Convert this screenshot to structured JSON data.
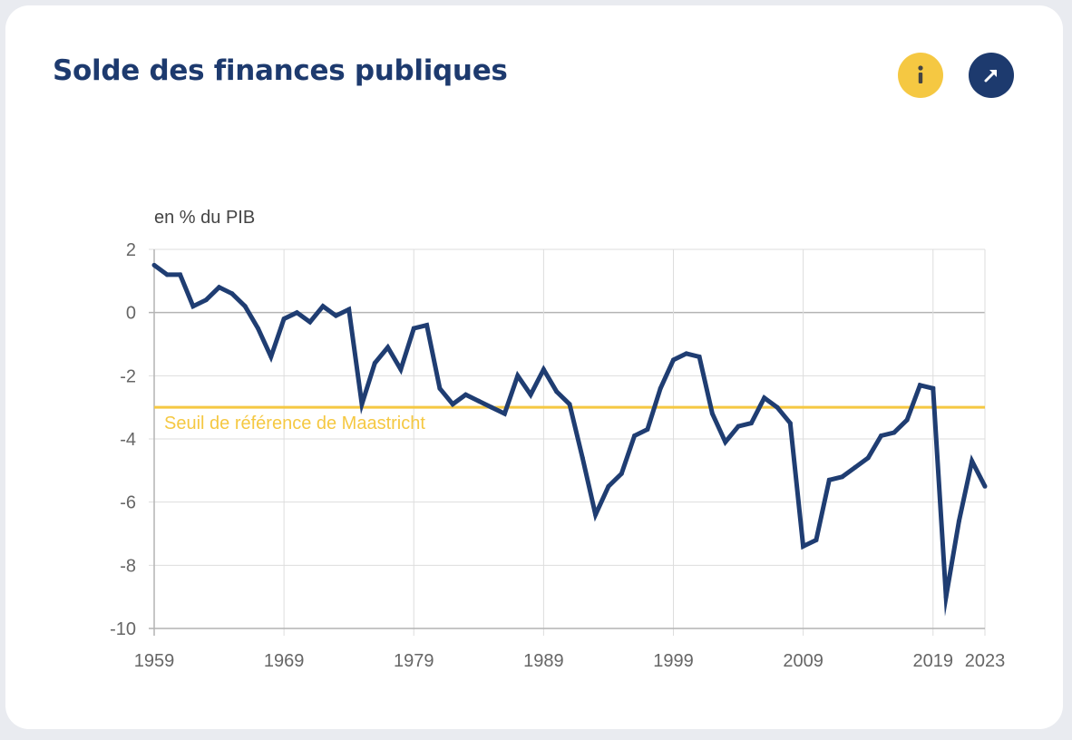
{
  "card": {
    "title": "Solde des finances publiques"
  },
  "icons": {
    "info": "info-icon",
    "open": "arrow-up-right-icon"
  },
  "colors": {
    "title": "#1d3a6e",
    "series": "#1f3d72",
    "threshold": "#f5c842",
    "info_button": "#f5c842",
    "open_button": "#1d3a6e",
    "grid": "#dddddd",
    "axis": "#b4b4b4",
    "tick_text": "#666666"
  },
  "chart_data": {
    "type": "line",
    "unit_label": "en % du PIB",
    "x": [
      1959,
      1960,
      1961,
      1962,
      1963,
      1964,
      1965,
      1966,
      1967,
      1968,
      1969,
      1970,
      1971,
      1972,
      1973,
      1974,
      1975,
      1976,
      1977,
      1978,
      1979,
      1980,
      1981,
      1982,
      1983,
      1984,
      1985,
      1986,
      1987,
      1988,
      1989,
      1990,
      1991,
      1992,
      1993,
      1994,
      1995,
      1996,
      1997,
      1998,
      1999,
      2000,
      2001,
      2002,
      2003,
      2004,
      2005,
      2006,
      2007,
      2008,
      2009,
      2010,
      2011,
      2012,
      2013,
      2014,
      2015,
      2016,
      2017,
      2018,
      2019,
      2020,
      2021,
      2022,
      2023
    ],
    "series": [
      {
        "values": [
          1.5,
          1.2,
          1.2,
          0.2,
          0.4,
          0.8,
          0.6,
          0.2,
          -0.5,
          -1.4,
          -0.2,
          0.0,
          -0.3,
          0.2,
          -0.1,
          0.1,
          -2.9,
          -1.6,
          -1.1,
          -1.8,
          -0.5,
          -0.4,
          -2.4,
          -2.9,
          -2.6,
          -2.8,
          -3.0,
          -3.2,
          -2.0,
          -2.6,
          -1.8,
          -2.5,
          -2.9,
          -4.6,
          -6.4,
          -5.5,
          -5.1,
          -3.9,
          -3.7,
          -2.4,
          -1.5,
          -1.3,
          -1.4,
          -3.2,
          -4.1,
          -3.6,
          -3.5,
          -2.7,
          -3.0,
          -3.5,
          -7.4,
          -7.2,
          -5.3,
          -5.2,
          -4.9,
          -4.6,
          -3.9,
          -3.8,
          -3.4,
          -2.3,
          -2.4,
          -9.0,
          -6.6,
          -4.7,
          -5.5
        ]
      }
    ],
    "threshold": {
      "value": -3,
      "label": "Seuil de référence de Maastricht"
    },
    "x_ticks": [
      1959,
      1969,
      1979,
      1989,
      1999,
      2009,
      2019,
      2023
    ],
    "xlim": [
      1959,
      2023
    ],
    "y_ticks": [
      2,
      0,
      -2,
      -4,
      -6,
      -8,
      -10
    ],
    "ylim": [
      -10,
      2
    ],
    "grid": true,
    "legend": "none"
  }
}
